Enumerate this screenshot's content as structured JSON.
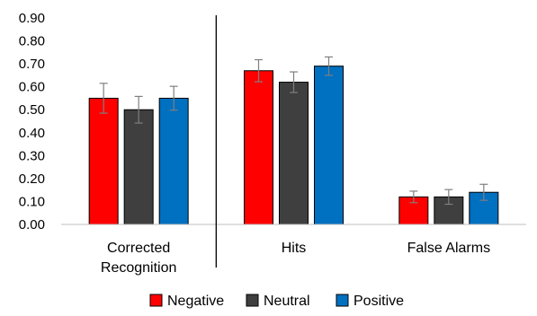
{
  "chart_data": {
    "type": "bar",
    "categories": [
      [
        "Corrected",
        "Recognition"
      ],
      [
        "Hits"
      ],
      [
        "False Alarms"
      ]
    ],
    "series": [
      {
        "name": "Negative",
        "color": "#ff0000",
        "values": [
          0.55,
          0.67,
          0.12
        ],
        "errors": [
          0.065,
          0.048,
          0.025
        ]
      },
      {
        "name": "Neutral",
        "color": "#3f3f3f",
        "values": [
          0.5,
          0.62,
          0.12
        ],
        "errors": [
          0.058,
          0.045,
          0.032
        ]
      },
      {
        "name": "Positive",
        "color": "#0070c0",
        "values": [
          0.55,
          0.69,
          0.14
        ],
        "errors": [
          0.052,
          0.04,
          0.035
        ]
      }
    ],
    "ylim": [
      0,
      0.9
    ],
    "yticks": [
      "0.00",
      "0.10",
      "0.20",
      "0.30",
      "0.40",
      "0.50",
      "0.60",
      "0.70",
      "0.80",
      "0.90"
    ],
    "grid": false,
    "legend_position": "bottom",
    "separator_after_category": 0
  }
}
